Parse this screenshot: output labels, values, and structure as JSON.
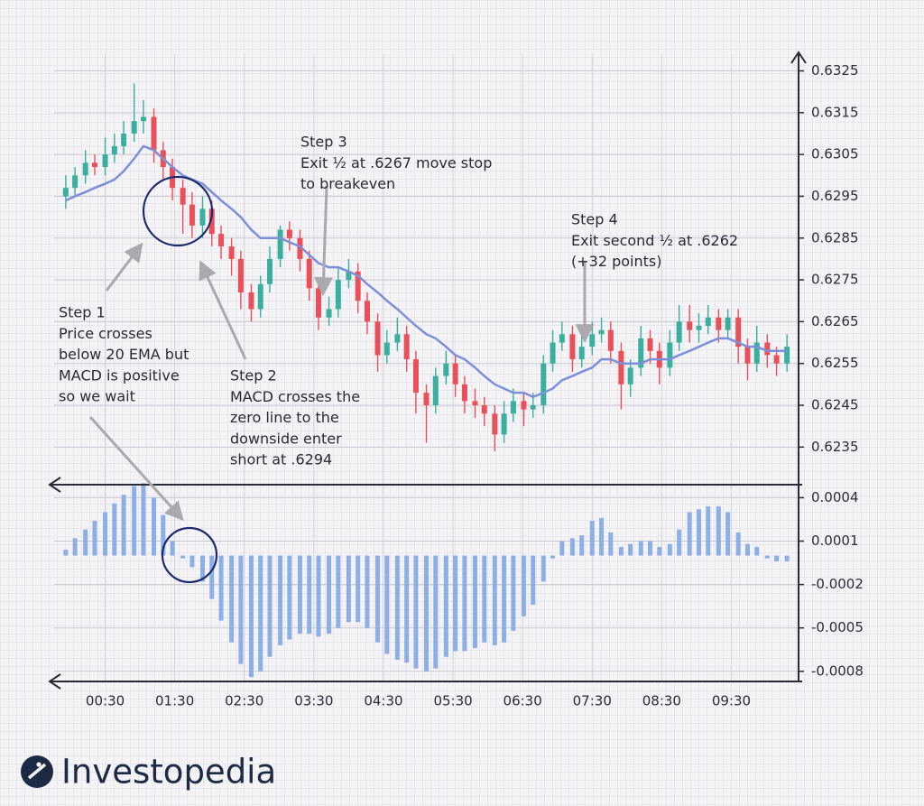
{
  "chart_data": {
    "type": "candlestick",
    "x": [
      -4,
      4,
      13,
      21,
      30,
      38,
      46,
      55,
      63,
      72,
      80,
      88,
      97,
      105,
      114,
      122,
      130,
      139,
      147,
      156,
      164,
      172,
      181,
      189,
      198,
      206,
      214,
      223,
      231,
      240,
      248,
      256,
      265,
      273,
      282,
      290,
      298,
      307,
      315,
      324,
      332,
      340,
      349,
      357,
      366,
      374,
      382,
      391,
      399,
      408,
      416,
      424,
      433,
      441,
      450,
      458,
      466,
      475,
      483,
      492,
      500,
      508,
      517,
      525,
      534,
      542,
      550,
      559,
      567,
      576,
      584,
      592,
      601,
      609,
      618
    ],
    "open": [
      0.6295,
      0.6297,
      0.63,
      0.6303,
      0.6302,
      0.6305,
      0.6307,
      0.631,
      0.6313,
      0.6314,
      0.6306,
      0.6302,
      0.6297,
      0.6293,
      0.6288,
      0.6292,
      0.6286,
      0.6283,
      0.628,
      0.6272,
      0.6268,
      0.6274,
      0.628,
      0.6287,
      0.6285,
      0.628,
      0.6273,
      0.6266,
      0.6268,
      0.6275,
      0.6277,
      0.627,
      0.6265,
      0.6257,
      0.626,
      0.6262,
      0.6256,
      0.6248,
      0.6245,
      0.6252,
      0.6255,
      0.625,
      0.6246,
      0.6245,
      0.6243,
      0.6238,
      0.6243,
      0.6246,
      0.6244,
      0.6245,
      0.6255,
      0.626,
      0.6262,
      0.6256,
      0.6259,
      0.6262,
      0.6263,
      0.6258,
      0.625,
      0.6254,
      0.6261,
      0.6258,
      0.6254,
      0.626,
      0.6265,
      0.6263,
      0.6264,
      0.6266,
      0.6263,
      0.6266,
      0.6259,
      0.6255,
      0.626,
      0.6257,
      0.6255
    ],
    "high": [
      0.63,
      0.6302,
      0.6306,
      0.6305,
      0.6309,
      0.631,
      0.6313,
      0.6322,
      0.6318,
      0.6316,
      0.6308,
      0.6304,
      0.6299,
      0.6296,
      0.6295,
      0.6294,
      0.6288,
      0.6285,
      0.6282,
      0.6274,
      0.6276,
      0.6283,
      0.6288,
      0.6289,
      0.6287,
      0.6282,
      0.6275,
      0.6271,
      0.6278,
      0.628,
      0.6279,
      0.6272,
      0.6267,
      0.6263,
      0.6266,
      0.6264,
      0.6258,
      0.625,
      0.6254,
      0.6258,
      0.6257,
      0.6252,
      0.6249,
      0.6247,
      0.6245,
      0.6246,
      0.6249,
      0.6248,
      0.6248,
      0.6257,
      0.6263,
      0.6265,
      0.6264,
      0.6262,
      0.6265,
      0.6266,
      0.6265,
      0.626,
      0.6256,
      0.6264,
      0.6263,
      0.626,
      0.6263,
      0.6269,
      0.6269,
      0.6267,
      0.6269,
      0.6268,
      0.6268,
      0.6268,
      0.6261,
      0.6264,
      0.6262,
      0.6259,
      0.6262
    ],
    "low": [
      0.6292,
      0.6295,
      0.6298,
      0.63,
      0.63,
      0.6303,
      0.6305,
      0.6308,
      0.631,
      0.6303,
      0.6299,
      0.6294,
      0.6286,
      0.6285,
      0.6285,
      0.6283,
      0.628,
      0.6276,
      0.6268,
      0.6265,
      0.6266,
      0.6272,
      0.6278,
      0.6282,
      0.6277,
      0.627,
      0.6263,
      0.6264,
      0.6266,
      0.6273,
      0.6267,
      0.6262,
      0.6253,
      0.6255,
      0.6258,
      0.6253,
      0.6243,
      0.6236,
      0.6243,
      0.625,
      0.6247,
      0.6243,
      0.6242,
      0.624,
      0.6234,
      0.6236,
      0.6241,
      0.624,
      0.6242,
      0.6243,
      0.6253,
      0.6258,
      0.6253,
      0.6254,
      0.6257,
      0.626,
      0.6255,
      0.6244,
      0.6247,
      0.6252,
      0.6255,
      0.625,
      0.6252,
      0.6258,
      0.626,
      0.626,
      0.6262,
      0.626,
      0.6261,
      0.6255,
      0.6251,
      0.6253,
      0.6254,
      0.6252,
      0.6253
    ],
    "close": [
      0.6297,
      0.63,
      0.6303,
      0.6302,
      0.6305,
      0.6307,
      0.631,
      0.6313,
      0.6314,
      0.6306,
      0.6302,
      0.6297,
      0.6293,
      0.6288,
      0.6292,
      0.6286,
      0.6283,
      0.628,
      0.6272,
      0.6268,
      0.6274,
      0.628,
      0.6287,
      0.6285,
      0.628,
      0.6273,
      0.6266,
      0.6268,
      0.6275,
      0.6277,
      0.627,
      0.6265,
      0.6257,
      0.626,
      0.6262,
      0.6256,
      0.6248,
      0.6245,
      0.6252,
      0.6255,
      0.625,
      0.6246,
      0.6245,
      0.6243,
      0.6238,
      0.6243,
      0.6246,
      0.6244,
      0.6245,
      0.6255,
      0.626,
      0.6262,
      0.6256,
      0.6259,
      0.6262,
      0.6263,
      0.6258,
      0.625,
      0.6254,
      0.6261,
      0.6258,
      0.6254,
      0.626,
      0.6265,
      0.6263,
      0.6264,
      0.6266,
      0.6263,
      0.6266,
      0.6259,
      0.6255,
      0.626,
      0.6257,
      0.6255,
      0.6259
    ],
    "up_color": "#3aaf9f",
    "down_color": "#e9505a",
    "ema": {
      "color": "#7d8fd8",
      "values": [
        0.6294,
        0.6295,
        0.6296,
        0.6297,
        0.6298,
        0.6299,
        0.6301,
        0.6304,
        0.6307,
        0.6306,
        0.6304,
        0.6302,
        0.63,
        0.6299,
        0.6298,
        0.6296,
        0.6294,
        0.6292,
        0.629,
        0.6287,
        0.6285,
        0.6285,
        0.6285,
        0.6284,
        0.6283,
        0.6281,
        0.6279,
        0.6278,
        0.6278,
        0.6277,
        0.6276,
        0.6274,
        0.6272,
        0.627,
        0.6268,
        0.6266,
        0.6264,
        0.6262,
        0.6261,
        0.6259,
        0.6257,
        0.6256,
        0.6254,
        0.6252,
        0.625,
        0.6249,
        0.6248,
        0.6248,
        0.6247,
        0.6248,
        0.6249,
        0.6251,
        0.6252,
        0.6253,
        0.6254,
        0.6256,
        0.6256,
        0.6255,
        0.6255,
        0.6255,
        0.6256,
        0.6256,
        0.6256,
        0.6257,
        0.6258,
        0.6259,
        0.626,
        0.6261,
        0.6261,
        0.626,
        0.6259,
        0.6259,
        0.6258,
        0.6258,
        0.6258
      ]
    },
    "macd": {
      "color": "#8eaee6",
      "axis": "y2",
      "values": [
        4e-05,
        0.00012,
        0.00018,
        0.00024,
        0.0003,
        0.00036,
        0.00042,
        0.00048,
        0.0005,
        0.0004,
        0.00028,
        0.0001,
        -2e-05,
        -8e-05,
        -0.00018,
        -0.0003,
        -0.00045,
        -0.0006,
        -0.00075,
        -0.00084,
        -0.0008,
        -0.0007,
        -0.00062,
        -0.00058,
        -0.00054,
        -0.00054,
        -0.00056,
        -0.00054,
        -0.0005,
        -0.00046,
        -0.00046,
        -0.0005,
        -0.0006,
        -0.00068,
        -0.00072,
        -0.00074,
        -0.00078,
        -0.0008,
        -0.00078,
        -0.0007,
        -0.00066,
        -0.00066,
        -0.00064,
        -0.0006,
        -0.00062,
        -0.0006,
        -0.00052,
        -0.00042,
        -0.00034,
        -0.00018,
        -2e-05,
        0.0001,
        0.00012,
        0.00014,
        0.00024,
        0.00026,
        0.00016,
        6e-05,
        8e-05,
        0.0001,
        0.0001,
        6e-05,
        8e-05,
        0.00018,
        0.0003,
        0.00032,
        0.00034,
        0.00034,
        0.0003,
        0.00016,
        8e-05,
        6e-05,
        -2e-05,
        -4e-05,
        -4e-05
      ]
    },
    "xlim": [
      -14,
      628
    ],
    "xticks": [
      {
        "value": 30,
        "label": "00:30"
      },
      {
        "value": 90,
        "label": "01:30"
      },
      {
        "value": 150,
        "label": "02:30"
      },
      {
        "value": 210,
        "label": "03:30"
      },
      {
        "value": 270,
        "label": "04:30"
      },
      {
        "value": 330,
        "label": "05:30"
      },
      {
        "value": 390,
        "label": "06:30"
      },
      {
        "value": 450,
        "label": "07:30"
      },
      {
        "value": 510,
        "label": "08:30"
      },
      {
        "value": 570,
        "label": "09:30"
      }
    ],
    "ylim": [
      0.6226,
      0.6329
    ],
    "yticks": [
      0.6325,
      0.6315,
      0.6305,
      0.6295,
      0.6285,
      0.6275,
      0.6265,
      0.6255,
      0.6245,
      0.6235
    ],
    "y2lim": [
      -0.00087,
      0.00049
    ],
    "y2ticks": [
      0.0004,
      0.0001,
      -0.0002,
      -0.0005,
      -0.0008
    ],
    "grid": true,
    "annotations": [
      [
        "Step 1",
        "Price crosses",
        "below 20 EMA but",
        "MACD is positive",
        "so we wait"
      ],
      [
        "Step 2",
        "MACD crosses the",
        "zero line to the",
        "downside enter",
        "short at .6294"
      ],
      [
        "Step 3",
        "Exit ½ at .6267 move stop",
        "to breakeven"
      ],
      [
        "Step 4",
        "Exit second  ½ at .6262",
        "(+32 points)"
      ]
    ]
  },
  "brand": "Investopedia"
}
